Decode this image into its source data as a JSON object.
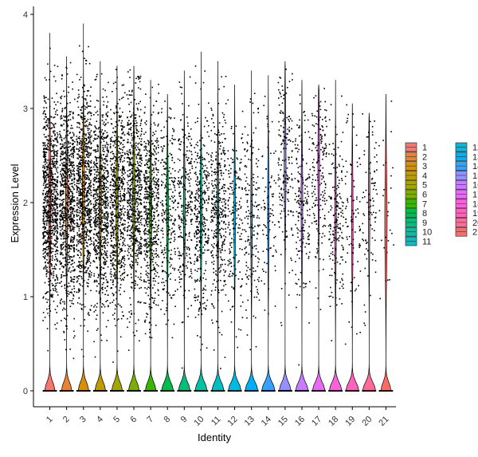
{
  "chart_data": {
    "type": "violin",
    "xlabel": "Identity",
    "ylabel": "Expression Level",
    "ylim": [
      0,
      4
    ],
    "yticks": [
      0,
      1,
      2,
      3,
      4
    ],
    "grid": false,
    "legend_position": "right",
    "categories": [
      "1",
      "2",
      "3",
      "4",
      "5",
      "6",
      "7",
      "8",
      "9",
      "10",
      "11",
      "12",
      "13",
      "14",
      "15",
      "16",
      "17",
      "18",
      "19",
      "20",
      "21"
    ],
    "colors": [
      "#F8766D",
      "#EA8331",
      "#D89000",
      "#C09B00",
      "#A3A500",
      "#7CAE00",
      "#39B600",
      "#00BB4E",
      "#00BF7D",
      "#00C1A3",
      "#00BFC4",
      "#00BAE0",
      "#00B0F6",
      "#35A2FF",
      "#9590FF",
      "#C77CFF",
      "#E76BF3",
      "#FA62DB",
      "#FF62BC",
      "#FF6A98",
      "#FF6C67"
    ],
    "relative_point_density": [
      10,
      9,
      9,
      8,
      7,
      7,
      6,
      3,
      3,
      4,
      4,
      2,
      2,
      1,
      2,
      2,
      2,
      2,
      1,
      1,
      0.3
    ],
    "max_values": [
      3.8,
      3.55,
      3.9,
      3.5,
      3.45,
      3.45,
      3.3,
      3.15,
      3.4,
      3.6,
      3.5,
      3.25,
      3.4,
      3.35,
      3.5,
      3.3,
      3.25,
      3.3,
      3.05,
      2.95,
      3.15
    ],
    "mode_values": [
      2.0,
      2.0,
      2.1,
      2.0,
      2.0,
      2.1,
      1.9,
      1.9,
      1.9,
      1.9,
      1.9,
      1.85,
      1.8,
      1.9,
      2.4,
      2.0,
      2.4,
      1.8,
      1.8,
      2.0,
      1.8
    ],
    "zero_fraction": [
      0.25,
      0.25,
      0.3,
      0.3,
      0.3,
      0.3,
      0.3,
      0.45,
      0.45,
      0.5,
      0.5,
      0.6,
      0.6,
      0.65,
      0.45,
      0.55,
      0.55,
      0.55,
      0.6,
      0.6,
      0.2
    ]
  }
}
